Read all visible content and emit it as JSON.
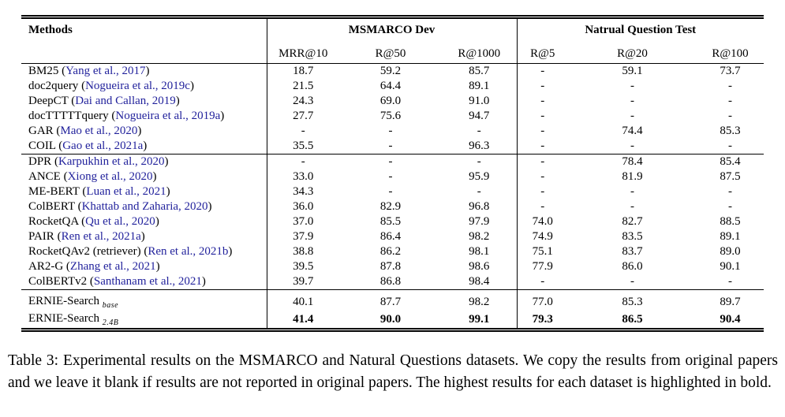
{
  "colors": {
    "citation_link": "#22229C",
    "text": "#000000",
    "background": "#FFFFFF",
    "rules": "#000000"
  },
  "table": {
    "header": {
      "methods_label": "Methods",
      "group1_label": "MSMARCO Dev",
      "group2_label": "Natrual Question Test",
      "subcols": [
        "MRR@10",
        "R@50",
        "R@1000",
        "R@5",
        "R@20",
        "R@100"
      ]
    },
    "groups": [
      {
        "rows": [
          {
            "name": "BM25",
            "cite": "Yang et al., 2017",
            "values": [
              "18.7",
              "59.2",
              "85.7",
              "-",
              "59.1",
              "73.7"
            ]
          },
          {
            "name": "doc2query",
            "cite": "Nogueira et al., 2019c",
            "values": [
              "21.5",
              "64.4",
              "89.1",
              "-",
              "-",
              "-"
            ]
          },
          {
            "name": "DeepCT",
            "cite": "Dai and Callan, 2019",
            "values": [
              "24.3",
              "69.0",
              "91.0",
              "-",
              "-",
              "-"
            ]
          },
          {
            "name": "docTTTTTquery",
            "cite": "Nogueira et al., 2019a",
            "values": [
              "27.7",
              "75.6",
              "94.7",
              "-",
              "-",
              "-"
            ]
          },
          {
            "name": "GAR",
            "cite": "Mao et al., 2020",
            "values": [
              "-",
              "-",
              "-",
              "-",
              "74.4",
              "85.3"
            ]
          },
          {
            "name": "COIL",
            "cite": "Gao et al., 2021a",
            "values": [
              "35.5",
              "-",
              "96.3",
              "-",
              "-",
              "-"
            ]
          }
        ]
      },
      {
        "rows": [
          {
            "name": "DPR",
            "cite": "Karpukhin et al., 2020",
            "values": [
              "-",
              "-",
              "-",
              "-",
              "78.4",
              "85.4"
            ]
          },
          {
            "name": "ANCE",
            "cite": "Xiong et al., 2020",
            "values": [
              "33.0",
              "-",
              "95.9",
              "-",
              "81.9",
              "87.5"
            ]
          },
          {
            "name": "ME-BERT",
            "cite": "Luan et al., 2021",
            "values": [
              "34.3",
              "-",
              "-",
              "-",
              "-",
              "-"
            ]
          },
          {
            "name": "ColBERT",
            "cite": "Khattab and Zaharia, 2020",
            "values": [
              "36.0",
              "82.9",
              "96.8",
              "-",
              "-",
              "-"
            ]
          },
          {
            "name": "RocketQA",
            "cite": "Qu et al., 2020",
            "values": [
              "37.0",
              "85.5",
              "97.9",
              "74.0",
              "82.7",
              "88.5"
            ]
          },
          {
            "name": "PAIR",
            "cite": "Ren et al., 2021a",
            "values": [
              "37.9",
              "86.4",
              "98.2",
              "74.9",
              "83.5",
              "89.1"
            ]
          },
          {
            "name": "RocketQAv2 (retriever)",
            "cite": "Ren et al., 2021b",
            "values": [
              "38.8",
              "86.2",
              "98.1",
              "75.1",
              "83.7",
              "89.0"
            ]
          },
          {
            "name": "AR2-G",
            "cite": "Zhang et al., 2021",
            "values": [
              "39.5",
              "87.8",
              "98.6",
              "77.9",
              "86.0",
              "90.1"
            ]
          },
          {
            "name": "ColBERTv2",
            "cite": "Santhanam et al., 2021",
            "values": [
              "39.7",
              "86.8",
              "98.4",
              "-",
              "-",
              "-"
            ]
          }
        ]
      },
      {
        "rows": [
          {
            "name": "ERNIE-Search",
            "sub": "base",
            "values": [
              "40.1",
              "87.7",
              "98.2",
              "77.0",
              "85.3",
              "89.7"
            ]
          },
          {
            "name": "ERNIE-Search",
            "sub": "2.4B",
            "bold": true,
            "values": [
              "41.4",
              "90.0",
              "99.1",
              "79.3",
              "86.5",
              "90.4"
            ]
          }
        ]
      }
    ]
  },
  "caption": {
    "text": "Table 3: Experimental results on the MSMARCO and Natural Questions datasets.  We copy the results from original papers and we leave it blank if results are not reported in original papers.  The highest results for each dataset is highlighted in bold."
  }
}
